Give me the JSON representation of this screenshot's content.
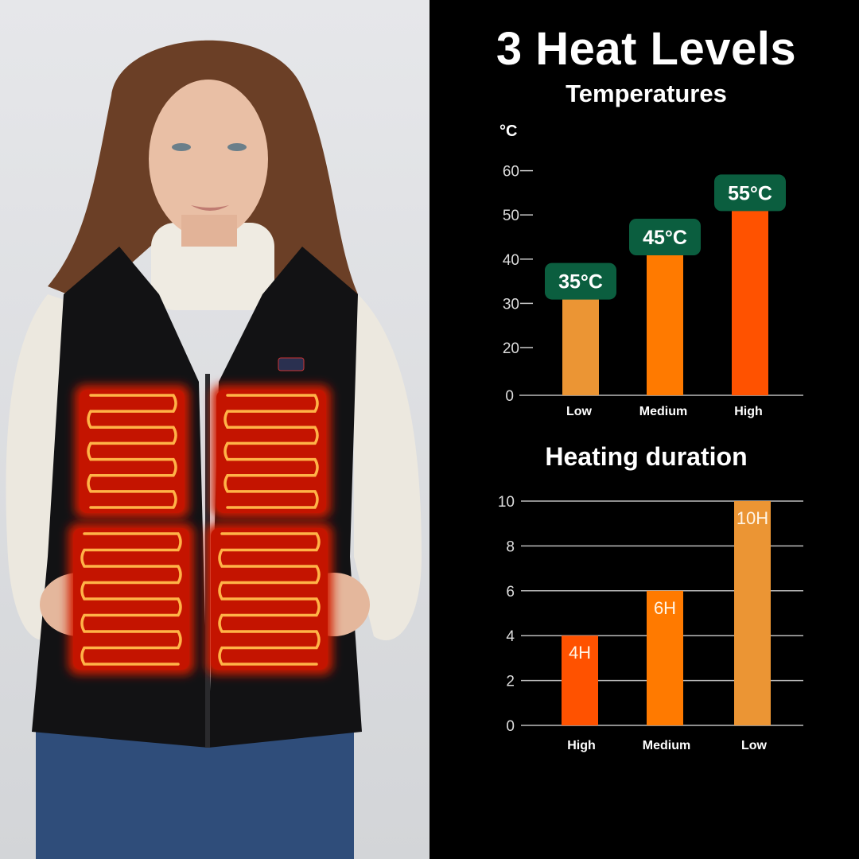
{
  "header": {
    "title": "3 Heat Levels",
    "subtitle": "Temperatures"
  },
  "colors": {
    "low": "#EB9534",
    "medium": "#FF7A00",
    "high": "#FF5200",
    "label_box": "#0B5E3F",
    "background": "#000000"
  },
  "product": {
    "description_icon": "heated-vest-photo"
  },
  "chart_data": [
    {
      "type": "bar",
      "title": "Temperatures",
      "ylabel": "°C",
      "categories": [
        "Low",
        "Medium",
        "High"
      ],
      "values": [
        35,
        45,
        55
      ],
      "data_labels": [
        "35°C",
        "45°C",
        "55°C"
      ],
      "yticks": [
        0,
        20,
        30,
        40,
        50,
        60
      ],
      "ylim": [
        0,
        60
      ],
      "grid": false
    },
    {
      "type": "bar",
      "title": "Heating duration",
      "categories": [
        "High",
        "Medium",
        "Low"
      ],
      "values": [
        4,
        6,
        10
      ],
      "data_labels": [
        "4H",
        "6H",
        "10H"
      ],
      "yticks": [
        0,
        2,
        4,
        6,
        8,
        10
      ],
      "ylim": [
        0,
        10
      ],
      "grid": true
    }
  ]
}
